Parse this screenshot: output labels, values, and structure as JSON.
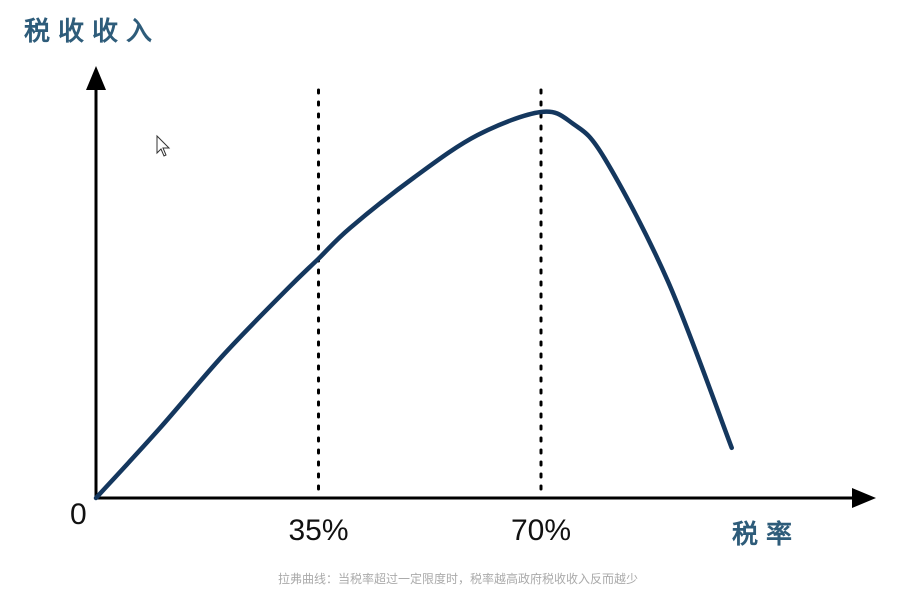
{
  "chart_data": {
    "type": "line",
    "title": "",
    "ylabel": "税收收入",
    "xlabel": "税率",
    "origin_label": "0",
    "ticks": [
      {
        "value": 35,
        "label": "35%"
      },
      {
        "value": 70,
        "label": "70%"
      }
    ],
    "xlim": [
      0,
      125
    ],
    "ylim": [
      0,
      1.1
    ],
    "series": [
      {
        "x": [
          0,
          10,
          20,
          30,
          35,
          40,
          50,
          60,
          70,
          75,
          80,
          90,
          100
        ],
        "y": [
          0,
          0.18,
          0.37,
          0.54,
          0.62,
          0.7,
          0.83,
          0.94,
          1.0,
          0.97,
          0.88,
          0.56,
          0.13
        ]
      }
    ],
    "reference_lines_x": [
      35,
      70
    ],
    "colors": {
      "curve": "#14375e",
      "axis": "#000000",
      "title": "#2e5c7a"
    }
  },
  "caption": "拉弗曲线：当税率超过一定限度时，税率越高政府税收收入反而越少"
}
